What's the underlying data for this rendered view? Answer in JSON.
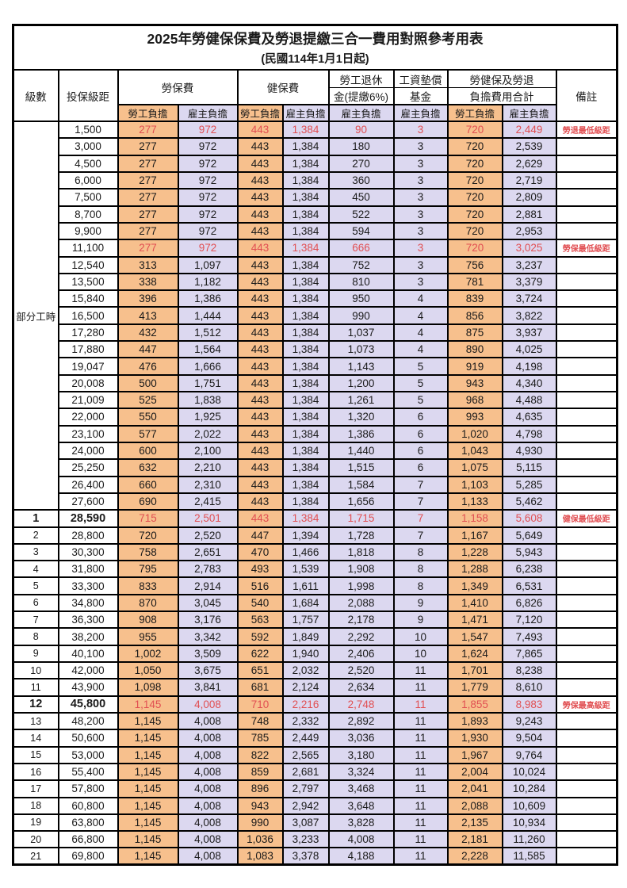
{
  "title": "2025年勞健保保費及勞退提繳三合一費用對照參考用表",
  "subtitle": "(民國114年1月1日起)",
  "colors": {
    "orange": "#f7c08d",
    "lavender": "#dcd8f0",
    "red": "#e14f52"
  },
  "header": {
    "level": "級數",
    "bracket": "投保級距",
    "labor_insurance": "勞保費",
    "health_insurance": "健保費",
    "pension_line1": "勞工退休",
    "pension_line2": "金(提繳6%)",
    "wage_fund_line1": "工資墊償",
    "wage_fund_line2": "基金",
    "total_line1": "勞健保及勞退",
    "total_line2": "負擔費用合計",
    "remarks": "備註",
    "employee_share": "勞工負擔",
    "employer_share": "雇主負擔"
  },
  "rows": [
    {
      "level": "部分工時",
      "level_rowspan": 23,
      "bracket": "1,500",
      "values": [
        "277",
        "972",
        "443",
        "1,384",
        "90",
        "3",
        "720",
        "2,449"
      ],
      "highlight": true,
      "bold": false,
      "remark": "勞退最低級距"
    },
    {
      "bracket": "3,000",
      "values": [
        "277",
        "972",
        "443",
        "1,384",
        "180",
        "3",
        "720",
        "2,539"
      ],
      "highlight": false,
      "bold": false,
      "remark": ""
    },
    {
      "bracket": "4,500",
      "values": [
        "277",
        "972",
        "443",
        "1,384",
        "270",
        "3",
        "720",
        "2,629"
      ],
      "highlight": false,
      "bold": false,
      "remark": ""
    },
    {
      "bracket": "6,000",
      "values": [
        "277",
        "972",
        "443",
        "1,384",
        "360",
        "3",
        "720",
        "2,719"
      ],
      "highlight": false,
      "bold": false,
      "remark": ""
    },
    {
      "bracket": "7,500",
      "values": [
        "277",
        "972",
        "443",
        "1,384",
        "450",
        "3",
        "720",
        "2,809"
      ],
      "highlight": false,
      "bold": false,
      "remark": ""
    },
    {
      "bracket": "8,700",
      "values": [
        "277",
        "972",
        "443",
        "1,384",
        "522",
        "3",
        "720",
        "2,881"
      ],
      "highlight": false,
      "bold": false,
      "remark": ""
    },
    {
      "bracket": "9,900",
      "values": [
        "277",
        "972",
        "443",
        "1,384",
        "594",
        "3",
        "720",
        "2,953"
      ],
      "highlight": false,
      "bold": false,
      "remark": ""
    },
    {
      "bracket": "11,100",
      "values": [
        "277",
        "972",
        "443",
        "1,384",
        "666",
        "3",
        "720",
        "3,025"
      ],
      "highlight": true,
      "bold": false,
      "remark": "勞保最低級距"
    },
    {
      "bracket": "12,540",
      "values": [
        "313",
        "1,097",
        "443",
        "1,384",
        "752",
        "3",
        "756",
        "3,237"
      ],
      "highlight": false,
      "bold": false,
      "remark": ""
    },
    {
      "bracket": "13,500",
      "values": [
        "338",
        "1,182",
        "443",
        "1,384",
        "810",
        "3",
        "781",
        "3,379"
      ],
      "highlight": false,
      "bold": false,
      "remark": ""
    },
    {
      "bracket": "15,840",
      "values": [
        "396",
        "1,386",
        "443",
        "1,384",
        "950",
        "4",
        "839",
        "3,724"
      ],
      "highlight": false,
      "bold": false,
      "remark": ""
    },
    {
      "bracket": "16,500",
      "values": [
        "413",
        "1,444",
        "443",
        "1,384",
        "990",
        "4",
        "856",
        "3,822"
      ],
      "highlight": false,
      "bold": false,
      "remark": ""
    },
    {
      "bracket": "17,280",
      "values": [
        "432",
        "1,512",
        "443",
        "1,384",
        "1,037",
        "4",
        "875",
        "3,937"
      ],
      "highlight": false,
      "bold": false,
      "remark": ""
    },
    {
      "bracket": "17,880",
      "values": [
        "447",
        "1,564",
        "443",
        "1,384",
        "1,073",
        "4",
        "890",
        "4,025"
      ],
      "highlight": false,
      "bold": false,
      "remark": ""
    },
    {
      "bracket": "19,047",
      "values": [
        "476",
        "1,666",
        "443",
        "1,384",
        "1,143",
        "5",
        "919",
        "4,198"
      ],
      "highlight": false,
      "bold": false,
      "remark": ""
    },
    {
      "bracket": "20,008",
      "values": [
        "500",
        "1,751",
        "443",
        "1,384",
        "1,200",
        "5",
        "943",
        "4,340"
      ],
      "highlight": false,
      "bold": false,
      "remark": ""
    },
    {
      "bracket": "21,009",
      "values": [
        "525",
        "1,838",
        "443",
        "1,384",
        "1,261",
        "5",
        "968",
        "4,488"
      ],
      "highlight": false,
      "bold": false,
      "remark": ""
    },
    {
      "bracket": "22,000",
      "values": [
        "550",
        "1,925",
        "443",
        "1,384",
        "1,320",
        "6",
        "993",
        "4,635"
      ],
      "highlight": false,
      "bold": false,
      "remark": ""
    },
    {
      "bracket": "23,100",
      "values": [
        "577",
        "2,022",
        "443",
        "1,384",
        "1,386",
        "6",
        "1,020",
        "4,798"
      ],
      "highlight": false,
      "bold": false,
      "remark": ""
    },
    {
      "bracket": "24,000",
      "values": [
        "600",
        "2,100",
        "443",
        "1,384",
        "1,440",
        "6",
        "1,043",
        "4,930"
      ],
      "highlight": false,
      "bold": false,
      "remark": ""
    },
    {
      "bracket": "25,250",
      "values": [
        "632",
        "2,210",
        "443",
        "1,384",
        "1,515",
        "6",
        "1,075",
        "5,115"
      ],
      "highlight": false,
      "bold": false,
      "remark": ""
    },
    {
      "bracket": "26,400",
      "values": [
        "660",
        "2,310",
        "443",
        "1,384",
        "1,584",
        "7",
        "1,103",
        "5,285"
      ],
      "highlight": false,
      "bold": false,
      "remark": ""
    },
    {
      "bracket": "27,600",
      "values": [
        "690",
        "2,415",
        "443",
        "1,384",
        "1,656",
        "7",
        "1,133",
        "5,462"
      ],
      "highlight": false,
      "bold": false,
      "remark": ""
    },
    {
      "level": "1",
      "bracket": "28,590",
      "values": [
        "715",
        "2,501",
        "443",
        "1,384",
        "1,715",
        "7",
        "1,158",
        "5,608"
      ],
      "highlight": true,
      "bold": true,
      "remark": "健保最低級距"
    },
    {
      "level": "2",
      "bracket": "28,800",
      "values": [
        "720",
        "2,520",
        "447",
        "1,394",
        "1,728",
        "7",
        "1,167",
        "5,649"
      ],
      "highlight": false,
      "bold": false,
      "remark": ""
    },
    {
      "level": "3",
      "bracket": "30,300",
      "values": [
        "758",
        "2,651",
        "470",
        "1,466",
        "1,818",
        "8",
        "1,228",
        "5,943"
      ],
      "highlight": false,
      "bold": false,
      "remark": ""
    },
    {
      "level": "4",
      "bracket": "31,800",
      "values": [
        "795",
        "2,783",
        "493",
        "1,539",
        "1,908",
        "8",
        "1,288",
        "6,238"
      ],
      "highlight": false,
      "bold": false,
      "remark": ""
    },
    {
      "level": "5",
      "bracket": "33,300",
      "values": [
        "833",
        "2,914",
        "516",
        "1,611",
        "1,998",
        "8",
        "1,349",
        "6,531"
      ],
      "highlight": false,
      "bold": false,
      "remark": ""
    },
    {
      "level": "6",
      "bracket": "34,800",
      "values": [
        "870",
        "3,045",
        "540",
        "1,684",
        "2,088",
        "9",
        "1,410",
        "6,826"
      ],
      "highlight": false,
      "bold": false,
      "remark": ""
    },
    {
      "level": "7",
      "bracket": "36,300",
      "values": [
        "908",
        "3,176",
        "563",
        "1,757",
        "2,178",
        "9",
        "1,471",
        "7,120"
      ],
      "highlight": false,
      "bold": false,
      "remark": ""
    },
    {
      "level": "8",
      "bracket": "38,200",
      "values": [
        "955",
        "3,342",
        "592",
        "1,849",
        "2,292",
        "10",
        "1,547",
        "7,493"
      ],
      "highlight": false,
      "bold": false,
      "remark": ""
    },
    {
      "level": "9",
      "bracket": "40,100",
      "values": [
        "1,002",
        "3,509",
        "622",
        "1,940",
        "2,406",
        "10",
        "1,624",
        "7,865"
      ],
      "highlight": false,
      "bold": false,
      "remark": ""
    },
    {
      "level": "10",
      "bracket": "42,000",
      "values": [
        "1,050",
        "3,675",
        "651",
        "2,032",
        "2,520",
        "11",
        "1,701",
        "8,238"
      ],
      "highlight": false,
      "bold": false,
      "remark": ""
    },
    {
      "level": "11",
      "bracket": "43,900",
      "values": [
        "1,098",
        "3,841",
        "681",
        "2,124",
        "2,634",
        "11",
        "1,779",
        "8,610"
      ],
      "highlight": false,
      "bold": false,
      "remark": ""
    },
    {
      "level": "12",
      "bracket": "45,800",
      "values": [
        "1,145",
        "4,008",
        "710",
        "2,216",
        "2,748",
        "11",
        "1,855",
        "8,983"
      ],
      "highlight": true,
      "bold": true,
      "remark": "勞保最高級距"
    },
    {
      "level": "13",
      "bracket": "48,200",
      "values": [
        "1,145",
        "4,008",
        "748",
        "2,332",
        "2,892",
        "11",
        "1,893",
        "9,243"
      ],
      "highlight": false,
      "bold": false,
      "remark": ""
    },
    {
      "level": "14",
      "bracket": "50,600",
      "values": [
        "1,145",
        "4,008",
        "785",
        "2,449",
        "3,036",
        "11",
        "1,930",
        "9,504"
      ],
      "highlight": false,
      "bold": false,
      "remark": ""
    },
    {
      "level": "15",
      "bracket": "53,000",
      "values": [
        "1,145",
        "4,008",
        "822",
        "2,565",
        "3,180",
        "11",
        "1,967",
        "9,764"
      ],
      "highlight": false,
      "bold": false,
      "remark": ""
    },
    {
      "level": "16",
      "bracket": "55,400",
      "values": [
        "1,145",
        "4,008",
        "859",
        "2,681",
        "3,324",
        "11",
        "2,004",
        "10,024"
      ],
      "highlight": false,
      "bold": false,
      "remark": ""
    },
    {
      "level": "17",
      "bracket": "57,800",
      "values": [
        "1,145",
        "4,008",
        "896",
        "2,797",
        "3,468",
        "11",
        "2,041",
        "10,284"
      ],
      "highlight": false,
      "bold": false,
      "remark": ""
    },
    {
      "level": "18",
      "bracket": "60,800",
      "values": [
        "1,145",
        "4,008",
        "943",
        "2,942",
        "3,648",
        "11",
        "2,088",
        "10,609"
      ],
      "highlight": false,
      "bold": false,
      "remark": ""
    },
    {
      "level": "19",
      "bracket": "63,800",
      "values": [
        "1,145",
        "4,008",
        "990",
        "3,087",
        "3,828",
        "11",
        "2,135",
        "10,934"
      ],
      "highlight": false,
      "bold": false,
      "remark": ""
    },
    {
      "level": "20",
      "bracket": "66,800",
      "values": [
        "1,145",
        "4,008",
        "1,036",
        "3,233",
        "4,008",
        "11",
        "2,181",
        "11,260"
      ],
      "highlight": false,
      "bold": false,
      "remark": ""
    },
    {
      "level": "21",
      "bracket": "69,800",
      "values": [
        "1,145",
        "4,008",
        "1,083",
        "3,378",
        "4,188",
        "11",
        "2,228",
        "11,585"
      ],
      "highlight": false,
      "bold": false,
      "remark": ""
    }
  ]
}
